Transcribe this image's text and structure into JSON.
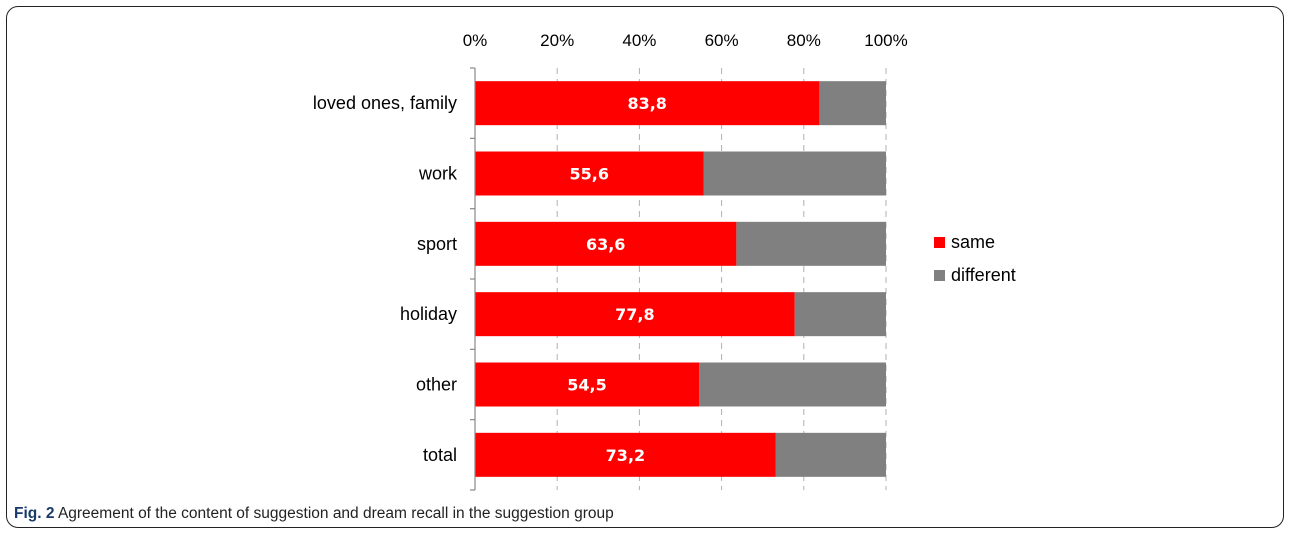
{
  "caption": {
    "label": "Fig. 2",
    "text": "Agreement of the content of suggestion and dream recall in the suggestion group"
  },
  "chart_data": {
    "type": "bar",
    "orientation": "horizontal",
    "stacked": true,
    "percent_stacked": true,
    "title": "",
    "xlabel": "",
    "ylabel": "",
    "xlim": [
      0,
      100
    ],
    "x_ticks": [
      0,
      20,
      40,
      60,
      80,
      100
    ],
    "x_tick_labels": [
      "0%",
      "20%",
      "40%",
      "60%",
      "80%",
      "100%"
    ],
    "x_axis_position": "top",
    "grid": "vertical dashed",
    "categories": [
      "loved ones, family",
      "work",
      "sport",
      "holiday",
      "other",
      "total"
    ],
    "series": [
      {
        "name": "same",
        "color": "#ff0000",
        "values": [
          83.8,
          55.6,
          63.6,
          77.8,
          54.5,
          73.2
        ],
        "labels": [
          "83,8",
          "55,6",
          "63,6",
          "77,8",
          "54,5",
          "73,2"
        ]
      },
      {
        "name": "different",
        "color": "#808080",
        "values": [
          16.2,
          44.4,
          36.4,
          22.2,
          45.5,
          26.8
        ]
      }
    ],
    "legend": {
      "position": "right",
      "entries": [
        "same",
        "different"
      ]
    }
  }
}
